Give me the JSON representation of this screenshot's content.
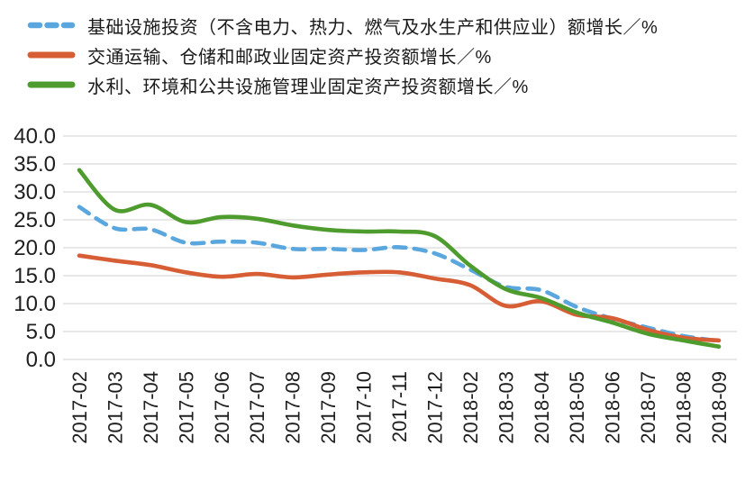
{
  "chart_data": {
    "type": "line",
    "title": "",
    "xlabel": "",
    "ylabel": "",
    "grid": true,
    "legend_position": "top-left",
    "ylim": [
      0,
      40
    ],
    "ytick_step": 5,
    "ytick_labels": [
      "0.0",
      "5.0",
      "10.0",
      "15.0",
      "20.0",
      "25.0",
      "30.0",
      "35.0",
      "40.0"
    ],
    "grid_color": "#d9d9d9",
    "text_color": "#1f1f1f",
    "categories": [
      "2017-02",
      "2017-03",
      "2017-04",
      "2017-05",
      "2017-06",
      "2017-07",
      "2017-08",
      "2017-09",
      "2017-10",
      "2017-11",
      "2017-12",
      "2018-02",
      "2018-03",
      "2018-04",
      "2018-05",
      "2018-06",
      "2018-07",
      "2018-08",
      "2018-09"
    ],
    "series": [
      {
        "name": "基础设施投资（不含电力、热力、燃气及水生产和供应业）额增长／%",
        "color": "#5aa6de",
        "dashed": true,
        "values": [
          27.3,
          23.5,
          23.3,
          20.9,
          21.1,
          20.9,
          19.8,
          19.8,
          19.6,
          20.1,
          19.0,
          16.1,
          13.0,
          12.4,
          9.4,
          7.3,
          5.7,
          4.2,
          3.3
        ]
      },
      {
        "name": "交通运输、仓储和邮政业固定资产投资额增长／%",
        "color": "#d75d35",
        "dashed": false,
        "values": [
          18.6,
          17.7,
          16.9,
          15.6,
          14.8,
          15.3,
          14.7,
          15.2,
          15.6,
          15.6,
          14.5,
          13.3,
          9.6,
          10.4,
          8.0,
          7.4,
          5.3,
          3.9,
          3.4
        ]
      },
      {
        "name": "水利、环境和公共设施管理业固定资产投资额增长／%",
        "color": "#4e9b2e",
        "dashed": false,
        "values": [
          33.9,
          26.8,
          27.7,
          24.6,
          25.5,
          25.2,
          24.0,
          23.2,
          22.9,
          22.9,
          22.1,
          16.8,
          12.6,
          11.0,
          8.4,
          6.6,
          4.6,
          3.4,
          2.3
        ]
      }
    ]
  }
}
